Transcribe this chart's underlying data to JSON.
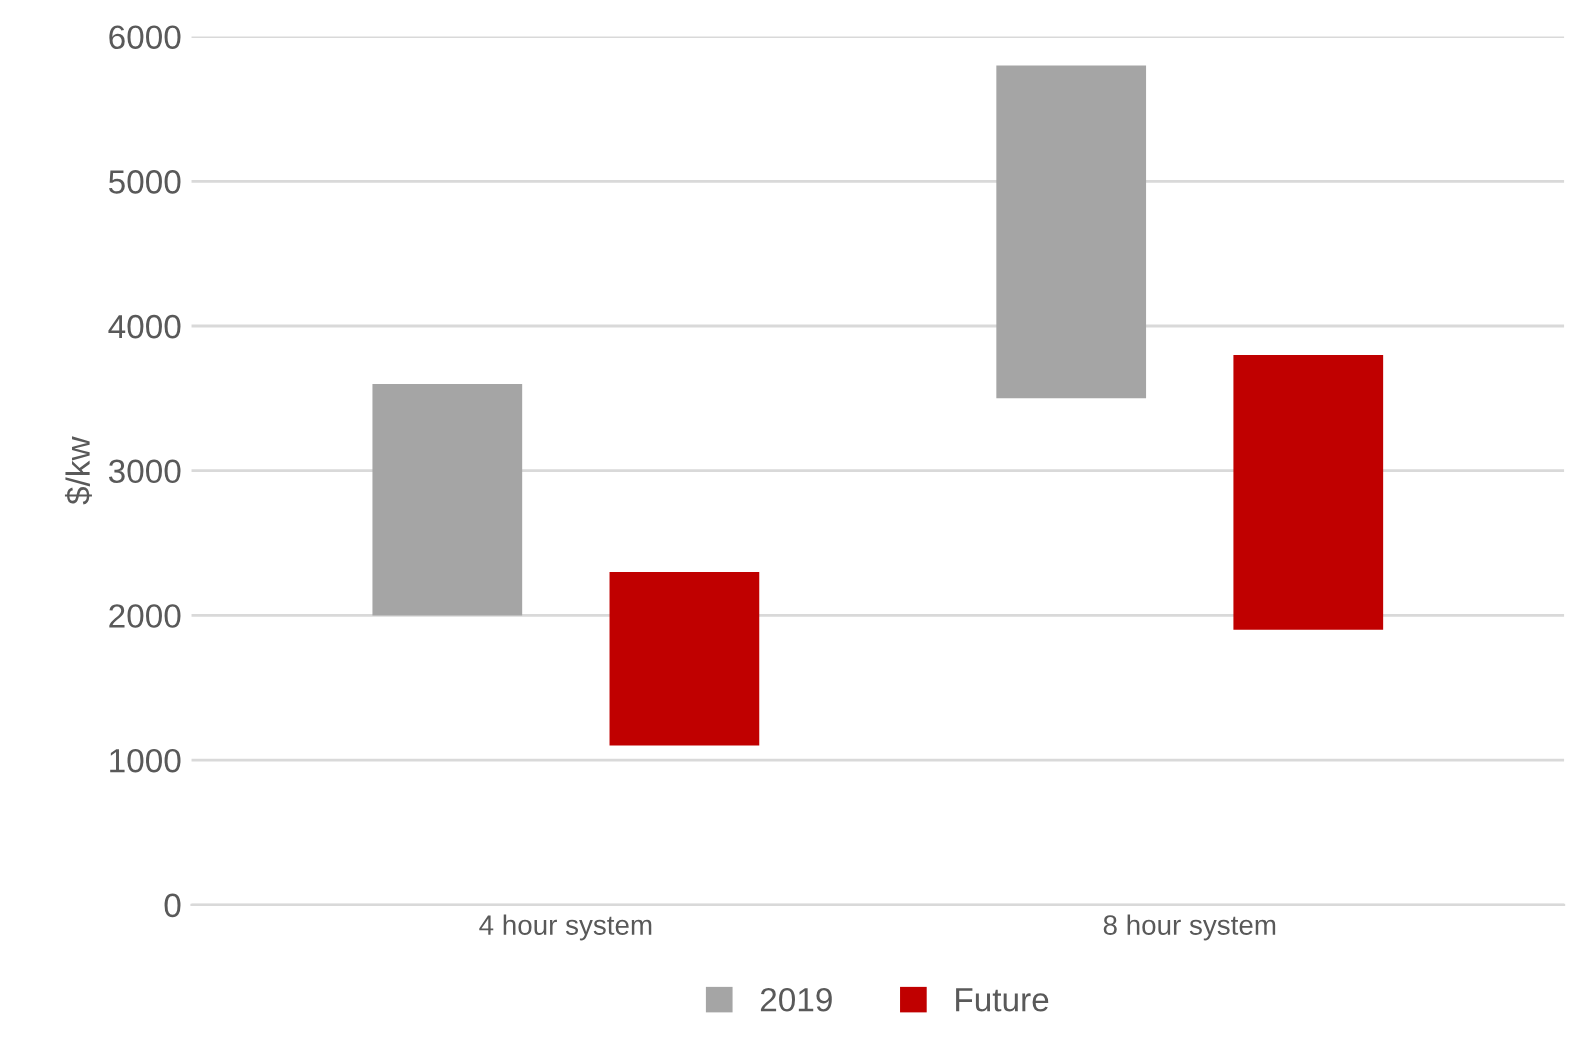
{
  "chart_data": {
    "type": "bar",
    "ylabel": "$/kw",
    "categories": [
      "4 hour system",
      "8 hour system"
    ],
    "series": [
      {
        "name": "2019",
        "color": "#a5a5a5",
        "values": [
          1600,
          2300
        ],
        "base": [
          2000,
          3500
        ]
      },
      {
        "name": "Future",
        "color": "#c00000",
        "values": [
          1200,
          1900
        ],
        "base": [
          1100,
          1900
        ]
      }
    ],
    "ylim": [
      0,
      6000
    ],
    "yticks": [
      0,
      1000,
      2000,
      3000,
      4000,
      5000,
      6000
    ],
    "grid": "y",
    "legend": "bottom"
  }
}
